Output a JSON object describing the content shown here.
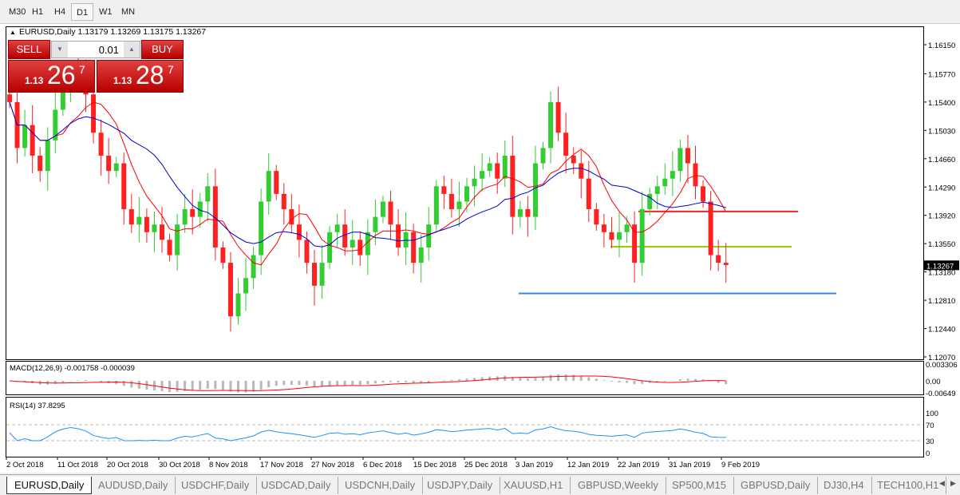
{
  "toolbar": {
    "timeframes": [
      "M30",
      "H1",
      "H4",
      "D1",
      "W1",
      "MN"
    ],
    "active": "D1"
  },
  "chart": {
    "header": "EURUSD,Daily  1.13179 1.13269 1.13175 1.13267",
    "symbol": "EURUSD,Daily",
    "ohlc": "1.13179 1.13269 1.13175 1.13267",
    "trade_panel": {
      "sell_label": "SELL",
      "buy_label": "BUY",
      "lot": "0.01",
      "sell_prefix": "1.13",
      "sell_big": "26",
      "sell_sup": "7",
      "buy_prefix": "1.13",
      "buy_big": "28",
      "buy_sup": "7"
    },
    "current_price": "1.13267"
  },
  "chart_data": {
    "type": "candlestick",
    "price_ticks": [
      "1.16150",
      "1.15770",
      "1.15400",
      "1.15030",
      "1.14660",
      "1.14290",
      "1.13920",
      "1.13550",
      "1.13180",
      "1.12810",
      "1.12440",
      "1.12070"
    ],
    "ylim": [
      1.1207,
      1.1615
    ],
    "date_labels": [
      "2 Oct 2018",
      "11 Oct 2018",
      "20 Oct 2018",
      "30 Oct 2018",
      "8 Nov 2018",
      "17 Nov 2018",
      "27 Nov 2018",
      "6 Dec 2018",
      "15 Dec 2018",
      "25 Dec 2018",
      "3 Jan 2019",
      "12 Jan 2019",
      "22 Jan 2019",
      "31 Jan 2019",
      "9 Feb 2019"
    ],
    "closes": [
      1.154,
      1.148,
      1.151,
      1.147,
      1.145,
      1.149,
      1.153,
      1.156,
      1.158,
      1.157,
      1.155,
      1.15,
      1.147,
      1.145,
      1.146,
      1.14,
      1.138,
      1.139,
      1.137,
      1.138,
      1.136,
      1.134,
      1.138,
      1.14,
      1.139,
      1.141,
      1.143,
      1.135,
      1.133,
      1.126,
      1.129,
      1.131,
      1.134,
      1.141,
      1.145,
      1.142,
      1.14,
      1.138,
      1.136,
      1.133,
      1.13,
      1.133,
      1.137,
      1.138,
      1.135,
      1.136,
      1.134,
      1.137,
      1.139,
      1.141,
      1.138,
      1.135,
      1.137,
      1.133,
      1.135,
      1.138,
      1.143,
      1.142,
      1.14,
      1.141,
      1.143,
      1.144,
      1.145,
      1.146,
      1.144,
      1.147,
      1.139,
      1.14,
      1.139,
      1.146,
      1.148,
      1.154,
      1.15,
      1.147,
      1.146,
      1.144,
      1.14,
      1.138,
      1.137,
      1.136,
      1.137,
      1.138,
      1.133,
      1.14,
      1.142,
      1.143,
      1.144,
      1.145,
      1.148,
      1.146,
      1.143,
      1.141,
      1.134,
      1.133,
      1.1327
    ],
    "up_color": "#33cc33",
    "down_color": "#ff2020",
    "moving_averages": [
      {
        "color": "#ff0000"
      },
      {
        "color": "#0000cc"
      }
    ],
    "horizontal_lines": [
      {
        "price": 1.1397,
        "color": "#ff2020"
      },
      {
        "price": 1.1351,
        "color": "#99cc00"
      },
      {
        "price": 1.129,
        "color": "#3388ee"
      }
    ],
    "macd": {
      "label": "MACD(12,26,9) -0.001758 -0.000039",
      "ticks": [
        "0.003306",
        "0.00",
        "-0.00649"
      ]
    },
    "rsi": {
      "label": "RSI(14) 37.8295",
      "ticks": [
        "100",
        "70",
        "30",
        "0"
      ]
    }
  },
  "tabs": [
    "EURUSD,Daily",
    "AUDUSD,Daily",
    "USDCHF,Daily",
    "USDCAD,Daily",
    "USDCNH,Daily",
    "USDJPY,Daily",
    "XAUUSD,H1",
    "GBPUSD,Weekly",
    "SP500,M15",
    "GBPUSD,Daily",
    "DJ30,H4",
    "TECH100,H1"
  ],
  "active_tab": "EURUSD,Daily"
}
